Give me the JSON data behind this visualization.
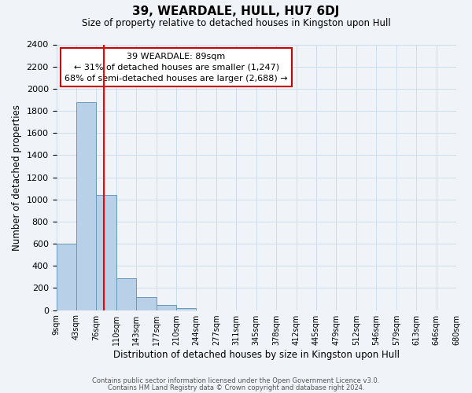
{
  "title": "39, WEARDALE, HULL, HU7 6DJ",
  "subtitle": "Size of property relative to detached houses in Kingston upon Hull",
  "xlabel": "Distribution of detached houses by size in Kingston upon Hull",
  "ylabel": "Number of detached properties",
  "bin_edges": [
    9,
    43,
    76,
    110,
    143,
    177,
    210,
    244,
    277,
    311,
    345,
    378,
    412,
    445,
    479,
    512,
    546,
    579,
    613,
    646,
    680
  ],
  "bin_labels": [
    "9sqm",
    "43sqm",
    "76sqm",
    "110sqm",
    "143sqm",
    "177sqm",
    "210sqm",
    "244sqm",
    "277sqm",
    "311sqm",
    "345sqm",
    "378sqm",
    "412sqm",
    "445sqm",
    "479sqm",
    "512sqm",
    "546sqm",
    "579sqm",
    "613sqm",
    "646sqm",
    "680sqm"
  ],
  "bar_heights": [
    600,
    1880,
    1040,
    290,
    115,
    45,
    20,
    0,
    0,
    0,
    0,
    0,
    0,
    0,
    0,
    0,
    0,
    0,
    0,
    0
  ],
  "bar_color": "#b8d0e8",
  "bar_edgecolor": "#6699bb",
  "background_color": "#f0f4f8",
  "grid_color": "#ccddee",
  "property_sqm": 89,
  "annotation_line1": "39 WEARDALE: 89sqm",
  "annotation_line2": "← 31% of detached houses are smaller (1,247)",
  "annotation_line3": "68% of semi-detached houses are larger (2,688) →",
  "annotation_box_color": "#ffffff",
  "annotation_box_edgecolor": "#cc0000",
  "ylim": [
    0,
    2400
  ],
  "yticks": [
    0,
    200,
    400,
    600,
    800,
    1000,
    1200,
    1400,
    1600,
    1800,
    2000,
    2200,
    2400
  ],
  "footer_line1": "Contains HM Land Registry data © Crown copyright and database right 2024.",
  "footer_line2": "Contains public sector information licensed under the Open Government Licence v3.0."
}
